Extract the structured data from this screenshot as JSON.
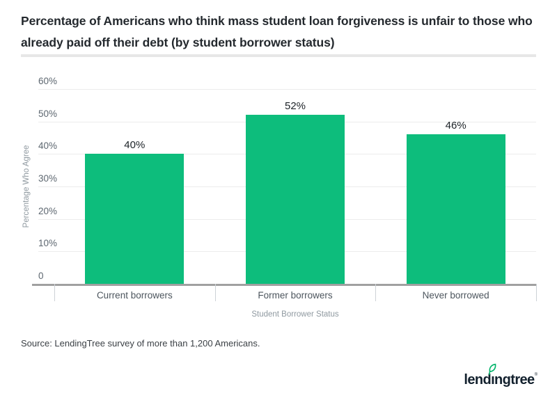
{
  "page": {
    "title": "Percentage of Americans who think mass student loan forgiveness is unfair to those who already paid off their debt (by student borrower status)",
    "source": "Source: LendingTree survey of more than 1,200 Americans.",
    "logo": {
      "wordmark": "lendıngtree",
      "registered": "®",
      "wordmark_color": "#13212e",
      "leaf_color": "#00b46a"
    }
  },
  "chart_data": {
    "type": "bar",
    "title": "Percentage of Americans who think mass student loan forgiveness is unfair to those who already paid off their debt (by student borrower status)",
    "categories": [
      "Current borrowers",
      "Former borrowers",
      "Never borrowed"
    ],
    "values": [
      40,
      52,
      46
    ],
    "value_labels": [
      "40%",
      "52%",
      "46%"
    ],
    "xlabel": "Student Borrower Status",
    "ylabel": "Percentage Who Agree",
    "ylim": [
      0,
      60
    ],
    "yticks": [
      {
        "value": 60,
        "label": "60%"
      },
      {
        "value": 50,
        "label": "50%"
      },
      {
        "value": 40,
        "label": "40%"
      },
      {
        "value": 30,
        "label": "30%"
      },
      {
        "value": 20,
        "label": "20%"
      },
      {
        "value": 10,
        "label": "10%"
      },
      {
        "value": 0,
        "label": "0"
      }
    ],
    "grid": true,
    "legend": "none",
    "bar_color": "#0dbd7c",
    "gridline_color": "#ececec",
    "axis_line_color": "#a0a0a0"
  }
}
